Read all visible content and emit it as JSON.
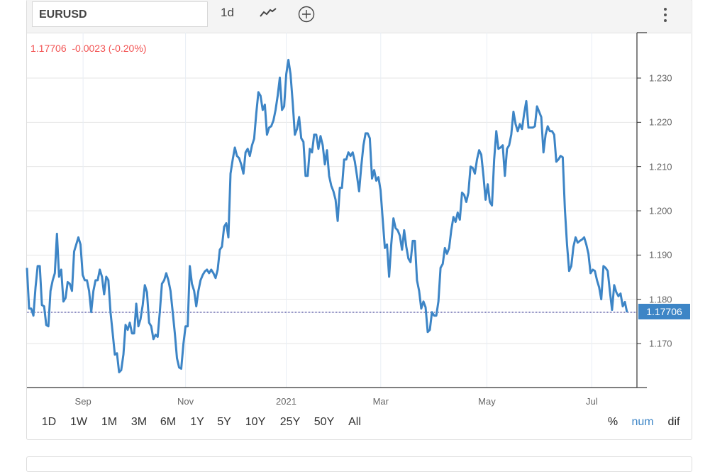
{
  "toolbar": {
    "symbol": "EURUSD",
    "interval": "1d",
    "chart_type_icon": "line-chart-icon",
    "add_icon": "plus-circle-icon",
    "menu_icon": "kebab-menu-icon"
  },
  "quote": {
    "text": "1.17706  -0.0023 (-0.20%)",
    "color": "#f25252"
  },
  "last_price_label": "1.17706",
  "ranges": [
    "1D",
    "1W",
    "1M",
    "3M",
    "6M",
    "1Y",
    "5Y",
    "10Y",
    "25Y",
    "50Y",
    "All"
  ],
  "modes": [
    {
      "label": "%",
      "active": false
    },
    {
      "label": "num",
      "active": true
    },
    {
      "label": "dif",
      "active": false
    }
  ],
  "colors": {
    "line": "#3d85c6",
    "accent": "#3d85c6",
    "last_line": "#1a1a80"
  },
  "chart_data": {
    "type": "line",
    "title": "EURUSD",
    "xlabel": "",
    "ylabel": "",
    "ylim": [
      1.16,
      1.2395
    ],
    "yticks": [
      "1.170",
      "1.180",
      "1.190",
      "1.200",
      "1.210",
      "1.220",
      "1.230"
    ],
    "ytick_values": [
      1.17,
      1.18,
      1.19,
      1.2,
      1.21,
      1.22,
      1.23
    ],
    "xticks": [
      "Sep",
      "Nov",
      "2021",
      "Mar",
      "May",
      "Jul"
    ],
    "xtick_fraction": [
      0.092,
      0.26,
      0.425,
      0.58,
      0.754,
      0.926
    ],
    "grid": true,
    "last_value": 1.17706,
    "series": [
      {
        "name": "EURUSD",
        "values": [
          1.1871,
          1.1779,
          1.1779,
          1.1763,
          1.1827,
          1.1875,
          1.1875,
          1.1787,
          1.1784,
          1.1742,
          1.1739,
          1.1819,
          1.1843,
          1.1859,
          1.1948,
          1.1851,
          1.1867,
          1.1795,
          1.1803,
          1.1839,
          1.1835,
          1.1819,
          1.1908,
          1.1924,
          1.194,
          1.1924,
          1.1855,
          1.1843,
          1.1843,
          1.1819,
          1.1771,
          1.1819,
          1.1843,
          1.1843,
          1.1867,
          1.1851,
          1.1811,
          1.1851,
          1.1843,
          1.1771,
          1.1723,
          1.1675,
          1.1678,
          1.1635,
          1.164,
          1.1675,
          1.1742,
          1.1731,
          1.1747,
          1.1723,
          1.1723,
          1.179,
          1.1739,
          1.1755,
          1.1787,
          1.1832,
          1.1816,
          1.1747,
          1.1739,
          1.171,
          1.172,
          1.1715,
          1.1771,
          1.1835,
          1.1843,
          1.1859,
          1.1843,
          1.1819,
          1.1771,
          1.1723,
          1.1667,
          1.1646,
          1.1643,
          1.1699,
          1.1739,
          1.1739,
          1.1875,
          1.1835,
          1.1819,
          1.1784,
          1.1819,
          1.1843,
          1.1855,
          1.1863,
          1.1867,
          1.1859,
          1.1867,
          1.1859,
          1.1848,
          1.1867,
          1.1912,
          1.1919,
          1.1964,
          1.1972,
          1.194,
          1.2084,
          1.2116,
          1.2143,
          1.2124,
          1.2119,
          1.2105,
          1.2084,
          1.2132,
          1.214,
          1.2124,
          1.2148,
          1.2163,
          1.222,
          1.2268,
          1.226,
          1.2228,
          1.224,
          1.2172,
          1.2188,
          1.2191,
          1.2204,
          1.2228,
          1.226,
          1.2301,
          1.2228,
          1.2236,
          1.2309,
          1.2341,
          1.2309,
          1.2244,
          1.2172,
          1.2185,
          1.2212,
          1.2164,
          1.2156,
          1.2079,
          1.2079,
          1.214,
          1.2132,
          1.2172,
          1.2172,
          1.214,
          1.2169,
          1.2148,
          1.2105,
          1.2137,
          1.2079,
          1.2057,
          1.2044,
          1.2025,
          1.1977,
          1.2052,
          1.2052,
          1.2116,
          1.2116,
          1.2132,
          1.2124,
          1.2132,
          1.2111,
          1.2079,
          1.2044,
          1.21,
          1.2148,
          1.2175,
          1.2175,
          1.2164,
          1.2073,
          1.2092,
          1.2068,
          1.2076,
          1.2047,
          1.198,
          1.1916,
          1.1924,
          1.1851,
          1.1924,
          1.1983,
          1.1961,
          1.1956,
          1.1944,
          1.1912,
          1.1956,
          1.1919,
          1.1892,
          1.1884,
          1.1932,
          1.1932,
          1.1843,
          1.1819,
          1.1779,
          1.1795,
          1.1782,
          1.1726,
          1.1731,
          1.1771,
          1.1763,
          1.1763,
          1.1795,
          1.1871,
          1.188,
          1.1916,
          1.1903,
          1.1916,
          1.1956,
          1.1986,
          1.1975,
          1.1996,
          1.198,
          1.2041,
          1.2036,
          1.202,
          1.2041,
          1.21,
          1.2097,
          1.2084,
          1.2116,
          1.2137,
          1.2127,
          1.2079,
          1.2025,
          1.206,
          1.202,
          1.2012,
          1.2116,
          1.218,
          1.214,
          1.2143,
          1.2148,
          1.2079,
          1.214,
          1.2148,
          1.2172,
          1.2224,
          1.2196,
          1.218,
          1.2196,
          1.2185,
          1.222,
          1.2248,
          1.2188,
          1.2188,
          1.2188,
          1.2191,
          1.2236,
          1.2224,
          1.2212,
          1.2132,
          1.2172,
          1.2191,
          1.218,
          1.218,
          1.2172,
          1.2111,
          1.2116,
          1.2124,
          1.2121,
          1.2004,
          1.1924,
          1.1864,
          1.1875,
          1.1919,
          1.194,
          1.1928,
          1.1932,
          1.1935,
          1.194,
          1.1924,
          1.1903,
          1.1859,
          1.1867,
          1.1864,
          1.1843,
          1.1827,
          1.18,
          1.1875,
          1.1871,
          1.1864,
          1.1819,
          1.1776,
          1.1832,
          1.1816,
          1.1807,
          1.1813,
          1.1784,
          1.1794,
          1.17706
        ]
      }
    ]
  }
}
